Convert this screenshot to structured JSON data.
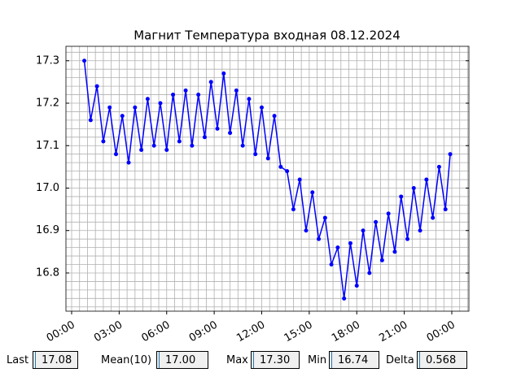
{
  "chart_data": {
    "type": "line",
    "title": "Магнит Температура входная 08.12.2024",
    "x": [
      0.8,
      1.2,
      1.6,
      2.0,
      2.4,
      2.8,
      3.2,
      3.6,
      4.0,
      4.4,
      4.8,
      5.2,
      5.6,
      6.0,
      6.4,
      6.8,
      7.2,
      7.6,
      8.0,
      8.4,
      8.8,
      9.2,
      9.6,
      10.0,
      10.4,
      10.8,
      11.2,
      11.6,
      12.0,
      12.4,
      12.8,
      13.2,
      13.6,
      14.0,
      14.4,
      14.8,
      15.2,
      15.6,
      16.0,
      16.4,
      16.8,
      17.2,
      17.6,
      18.0,
      18.4,
      18.8,
      19.2,
      19.6,
      20.0,
      20.4,
      20.8,
      21.2,
      21.6,
      22.0,
      22.4,
      22.8,
      23.2,
      23.6,
      23.9
    ],
    "series": [
      {
        "color": "#0000ff",
        "values": [
          17.3,
          17.16,
          17.24,
          17.11,
          17.19,
          17.08,
          17.17,
          17.06,
          17.19,
          17.09,
          17.21,
          17.1,
          17.2,
          17.09,
          17.22,
          17.11,
          17.23,
          17.1,
          17.22,
          17.12,
          17.25,
          17.14,
          17.27,
          17.13,
          17.23,
          17.1,
          17.21,
          17.08,
          17.19,
          17.07,
          17.17,
          17.05,
          17.04,
          16.95,
          17.02,
          16.9,
          16.99,
          16.88,
          16.93,
          16.82,
          16.86,
          16.74,
          16.87,
          16.77,
          16.9,
          16.8,
          16.92,
          16.83,
          16.94,
          16.85,
          16.98,
          16.88,
          17.0,
          16.9,
          17.02,
          16.93,
          17.05,
          16.95,
          17.08
        ]
      }
    ],
    "xlim": [
      -0.36,
      25.08
    ],
    "xticks": [
      {
        "value": 0,
        "label": "00:00"
      },
      {
        "value": 3,
        "label": "03:00"
      },
      {
        "value": 6,
        "label": "06:00"
      },
      {
        "value": 9,
        "label": "09:00"
      },
      {
        "value": 12,
        "label": "12:00"
      },
      {
        "value": 15,
        "label": "15:00"
      },
      {
        "value": 18,
        "label": "18:00"
      },
      {
        "value": 21,
        "label": "21:00"
      },
      {
        "value": 24,
        "label": "00:00"
      }
    ],
    "ylim": [
      16.71,
      17.334
    ],
    "yticks": [
      16.8,
      16.9,
      {
        "value": 17,
        "label": "17.0"
      },
      17.1,
      17.2,
      17.3
    ],
    "minor_xticks": [
      0,
      0.5,
      1,
      1.5,
      2,
      2.5,
      3,
      3.5,
      4,
      4.5,
      5,
      5.5,
      6,
      6.5,
      7,
      7.5,
      8,
      8.5,
      9,
      9.5,
      10,
      10.5,
      11,
      11.5,
      12,
      12.5,
      13,
      13.5,
      14,
      14.5,
      15,
      15.5,
      16,
      16.5,
      17,
      17.5,
      18,
      18.5,
      19,
      19.5,
      20,
      20.5,
      21,
      21.5,
      22,
      22.5,
      23,
      23.5,
      24,
      24.5,
      25
    ],
    "minor_yticks": [
      16.72,
      16.74,
      16.76,
      16.78,
      16.8,
      16.82,
      16.84,
      16.86,
      16.88,
      16.9,
      16.92,
      16.94,
      16.96,
      16.98,
      17,
      17.02,
      17.04,
      17.06,
      17.08,
      17.1,
      17.12,
      17.14,
      17.16,
      17.18,
      17.2,
      17.22,
      17.24,
      17.26,
      17.28,
      17.3,
      17.32
    ],
    "grid": true
  },
  "controls": [
    {
      "label": "Last",
      "value": "17.08"
    },
    {
      "label": "Mean(10)",
      "value": "17.00"
    },
    {
      "label": "Max",
      "value": "17.30"
    },
    {
      "label": "Min",
      "value": "16.74"
    },
    {
      "label": "Delta",
      "value": "0.568"
    }
  ]
}
